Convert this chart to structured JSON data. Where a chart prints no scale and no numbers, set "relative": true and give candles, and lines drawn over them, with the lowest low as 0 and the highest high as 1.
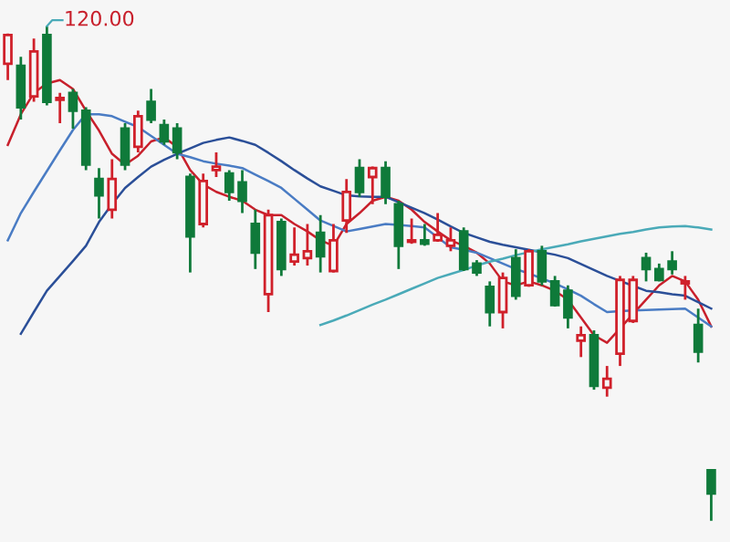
{
  "chart_data": {
    "type": "candlestick",
    "relative": true,
    "categories": [
      null,
      null,
      null,
      null,
      null,
      null,
      null,
      null,
      null,
      null,
      null,
      null,
      null,
      null,
      null,
      null,
      null,
      null,
      null,
      null,
      null,
      null,
      null,
      null,
      null,
      null,
      null,
      null,
      null,
      null,
      null,
      null,
      null,
      null,
      null,
      null,
      null,
      null,
      null,
      null,
      null,
      null,
      null,
      null,
      null,
      null,
      null,
      null,
      null,
      null,
      null,
      null,
      null,
      null,
      null
    ],
    "ohlc": [
      [
        0.924,
        0.985,
        0.891,
        0.982
      ],
      [
        0.92,
        0.938,
        0.811,
        0.836
      ],
      [
        0.858,
        0.975,
        0.847,
        0.949
      ],
      [
        0.982,
        1.0,
        0.84,
        0.847
      ],
      [
        0.851,
        0.865,
        0.804,
        0.855
      ],
      [
        0.865,
        0.873,
        0.793,
        0.829
      ],
      [
        0.829,
        0.836,
        0.709,
        0.72
      ],
      [
        0.691,
        0.713,
        0.611,
        0.658
      ],
      [
        0.629,
        0.731,
        0.611,
        0.691
      ],
      [
        0.793,
        0.804,
        0.709,
        0.72
      ],
      [
        0.756,
        0.829,
        0.745,
        0.818
      ],
      [
        0.847,
        0.873,
        0.804,
        0.811
      ],
      [
        0.8,
        0.811,
        0.76,
        0.767
      ],
      [
        0.793,
        0.804,
        0.731,
        0.745
      ],
      [
        0.695,
        0.702,
        0.502,
        0.575
      ],
      [
        0.6,
        0.702,
        0.593,
        0.687
      ],
      [
        0.709,
        0.745,
        0.695,
        0.716
      ],
      [
        0.702,
        0.709,
        0.647,
        0.665
      ],
      [
        0.684,
        0.709,
        0.622,
        0.647
      ],
      [
        0.6,
        0.629,
        0.509,
        0.542
      ],
      [
        0.458,
        0.629,
        0.422,
        0.618
      ],
      [
        0.604,
        0.611,
        0.495,
        0.509
      ],
      [
        0.524,
        0.593,
        0.516,
        0.538
      ],
      [
        0.531,
        0.6,
        0.516,
        0.545
      ],
      [
        0.582,
        0.618,
        0.502,
        0.535
      ],
      [
        0.505,
        0.6,
        0.502,
        0.567
      ],
      [
        0.607,
        0.691,
        0.582,
        0.665
      ],
      [
        0.713,
        0.731,
        0.655,
        0.665
      ],
      [
        0.695,
        0.716,
        0.64,
        0.713
      ],
      [
        0.713,
        0.727,
        0.64,
        0.655
      ],
      [
        0.64,
        0.647,
        0.509,
        0.556
      ],
      [
        0.564,
        0.611,
        0.56,
        0.567
      ],
      [
        0.567,
        0.6,
        0.556,
        0.56
      ],
      [
        0.567,
        0.622,
        0.564,
        0.578
      ],
      [
        0.556,
        0.593,
        0.545,
        0.567
      ],
      [
        0.585,
        0.593,
        0.505,
        0.509
      ],
      [
        0.52,
        0.527,
        0.495,
        0.502
      ],
      [
        0.473,
        0.484,
        0.393,
        0.422
      ],
      [
        0.422,
        0.502,
        0.389,
        0.491
      ],
      [
        0.531,
        0.549,
        0.447,
        0.455
      ],
      [
        0.476,
        0.549,
        0.473,
        0.545
      ],
      [
        0.545,
        0.556,
        0.476,
        0.484
      ],
      [
        0.484,
        0.495,
        0.433,
        0.436
      ],
      [
        0.465,
        0.476,
        0.389,
        0.411
      ],
      [
        0.364,
        0.393,
        0.331,
        0.375
      ],
      [
        0.375,
        0.385,
        0.265,
        0.273
      ],
      [
        0.269,
        0.313,
        0.251,
        0.287
      ],
      [
        0.338,
        0.495,
        0.313,
        0.487
      ],
      [
        0.404,
        0.495,
        0.4,
        0.487
      ],
      [
        0.531,
        0.542,
        0.484,
        0.509
      ],
      [
        0.509,
        0.52,
        0.484,
        0.487
      ],
      [
        0.524,
        0.545,
        0.498,
        0.509
      ],
      [
        0.48,
        0.495,
        0.447,
        0.484
      ],
      [
        0.396,
        0.429,
        0.32,
        0.342
      ],
      [
        0.102,
        0.102,
        0.0,
        0.055
      ]
    ],
    "colors": [
      "#d0202a",
      "#0f7a3a",
      "#d0202a",
      "#0f7a3a",
      "#d0202a",
      "#0f7a3a",
      "#0f7a3a",
      "#0f7a3a",
      "#d0202a",
      "#0f7a3a",
      "#d0202a",
      "#0f7a3a",
      "#0f7a3a",
      "#0f7a3a",
      "#0f7a3a",
      "#d0202a",
      "#d0202a",
      "#0f7a3a",
      "#0f7a3a",
      "#0f7a3a",
      "#d0202a",
      "#0f7a3a",
      "#d0202a",
      "#d0202a",
      "#0f7a3a",
      "#d0202a",
      "#d0202a",
      "#0f7a3a",
      "#d0202a",
      "#0f7a3a",
      "#0f7a3a",
      "#d0202a",
      "#0f7a3a",
      "#d0202a",
      "#d0202a",
      "#0f7a3a",
      "#0f7a3a",
      "#0f7a3a",
      "#d0202a",
      "#0f7a3a",
      "#d0202a",
      "#0f7a3a",
      "#0f7a3a",
      "#0f7a3a",
      "#d0202a",
      "#0f7a3a",
      "#d0202a",
      "#d0202a",
      "#d0202a",
      "#0f7a3a",
      "#0f7a3a",
      "#0f7a3a",
      "#d0202a",
      "#0f7a3a",
      "#0f7a3a"
    ],
    "series": [
      {
        "type": "line",
        "color": "#c8202c",
        "values": [
          0.76,
          0.822,
          0.865,
          0.884,
          0.891,
          0.873,
          0.829,
          0.789,
          0.742,
          0.72,
          0.738,
          0.767,
          0.775,
          0.756,
          0.709,
          0.68,
          0.665,
          0.655,
          0.647,
          0.629,
          0.618,
          0.618,
          0.6,
          0.585,
          0.567,
          0.556,
          0.6,
          0.622,
          0.647,
          0.655,
          0.647,
          0.629,
          0.604,
          0.585,
          0.567,
          0.556,
          0.542,
          0.52,
          0.484,
          0.476,
          0.484,
          0.476,
          0.465,
          0.447,
          0.411,
          0.375,
          0.36,
          0.389,
          0.418,
          0.447,
          0.476,
          0.495,
          0.484,
          0.447,
          0.393
        ]
      },
      {
        "type": "line",
        "color": "#4a7cc4",
        "values": [
          0.567,
          0.622,
          0.665,
          0.707,
          0.749,
          0.79,
          0.822,
          0.822,
          0.818,
          0.807,
          0.796,
          0.778,
          0.76,
          0.742,
          0.735,
          0.727,
          0.722,
          0.718,
          0.713,
          0.7,
          0.687,
          0.673,
          0.651,
          0.629,
          0.607,
          0.596,
          0.585,
          0.59,
          0.595,
          0.6,
          0.598,
          0.596,
          0.593,
          0.573,
          0.553,
          0.548,
          0.542,
          0.531,
          0.52,
          0.509,
          0.5,
          0.49,
          0.48,
          0.468,
          0.455,
          0.438,
          0.422,
          0.424,
          0.425,
          0.426,
          0.427,
          0.428,
          0.429,
          0.411,
          0.393
        ]
      },
      {
        "type": "line",
        "color": "#2b4f98",
        "values": [
          null,
          0.378,
          0.422,
          0.465,
          0.495,
          0.525,
          0.556,
          0.604,
          0.64,
          0.673,
          0.695,
          0.716,
          0.73,
          0.742,
          0.753,
          0.764,
          0.77,
          0.775,
          0.768,
          0.76,
          0.744,
          0.727,
          0.709,
          0.692,
          0.676,
          0.667,
          0.658,
          0.656,
          0.655,
          0.655,
          0.644,
          0.633,
          0.622,
          0.609,
          0.595,
          0.582,
          0.573,
          0.564,
          0.558,
          0.553,
          0.548,
          0.543,
          0.538,
          0.531,
          0.519,
          0.507,
          0.495,
          0.485,
          0.475,
          0.465,
          0.462,
          0.458,
          0.455,
          0.442,
          0.429
        ]
      },
      {
        "type": "line",
        "color": "#4aaab8",
        "values": [
          null,
          null,
          null,
          null,
          null,
          null,
          null,
          null,
          null,
          null,
          null,
          null,
          null,
          null,
          null,
          null,
          null,
          null,
          null,
          null,
          null,
          null,
          null,
          null,
          0.396,
          0.405,
          0.415,
          0.426,
          0.437,
          0.447,
          0.458,
          0.469,
          0.48,
          0.491,
          0.499,
          0.507,
          0.516,
          0.524,
          0.53,
          0.537,
          0.543,
          0.549,
          0.554,
          0.559,
          0.565,
          0.57,
          0.575,
          0.58,
          0.584,
          0.589,
          0.593,
          0.595,
          0.596,
          0.593,
          0.589
        ]
      }
    ],
    "annotations": [
      "120.00"
    ]
  }
}
